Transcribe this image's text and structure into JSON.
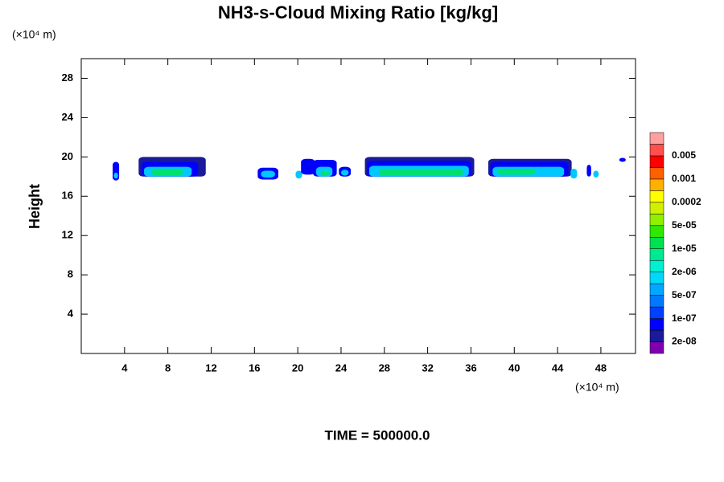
{
  "chart_data": {
    "type": "contour",
    "title": "NH3-s-Cloud Mixing Ratio [kg/kg]",
    "ylabel": "Height",
    "x_unit": "(×10⁴ m)",
    "y_unit": "(×10⁴ m)",
    "footer": "TIME = 500000.0",
    "xlim": [
      0,
      51.2
    ],
    "xticks": [
      4,
      8,
      12,
      16,
      20,
      24,
      28,
      32,
      36,
      40,
      44,
      48
    ],
    "ylim": [
      0,
      30
    ],
    "yticks": [
      4,
      8,
      12,
      16,
      20,
      24,
      28
    ],
    "colorbar": {
      "colors": [
        "#8000b0",
        "#1a1a9a",
        "#0000ff",
        "#0040ff",
        "#0078ff",
        "#00a8ff",
        "#00d8f8",
        "#00f0d0",
        "#00e890",
        "#00e050",
        "#30e800",
        "#90f000",
        "#d0f000",
        "#ffff00",
        "#ffb000",
        "#ff6000",
        "#ff0000",
        "#ff5050",
        "#ffa0a0"
      ],
      "ticks": [
        {
          "value": 2e-08,
          "label": "2e-08"
        },
        {
          "value": 1e-07,
          "label": "1e-07"
        },
        {
          "value": 5e-07,
          "label": "5e-07"
        },
        {
          "value": 2e-06,
          "label": "2e-06"
        },
        {
          "value": 1e-05,
          "label": "1e-05"
        },
        {
          "value": 5e-05,
          "label": "5e-05"
        },
        0.0002,
        0.001,
        0.005
      ]
    },
    "regions": [
      {
        "x": [
          2.9,
          3.5
        ],
        "y": [
          17.6,
          19.5
        ],
        "value": 1e-07,
        "color": "#0000ff"
      },
      {
        "x": [
          3.0,
          3.4
        ],
        "y": [
          17.8,
          18.4
        ],
        "value": 5e-07,
        "color": "#00c8ff"
      },
      {
        "x": [
          5.3,
          11.5
        ],
        "y": [
          18.0,
          20.0
        ],
        "value": 2e-08,
        "color": "#1a1a9a"
      },
      {
        "x": [
          5.6,
          10.8
        ],
        "y": [
          18.0,
          19.5
        ],
        "value": 1e-07,
        "color": "#0000ff"
      },
      {
        "x": [
          5.8,
          10.2
        ],
        "y": [
          18.0,
          19.0
        ],
        "value": 5e-07,
        "color": "#00c8ff"
      },
      {
        "x": [
          6.5,
          9.4
        ],
        "y": [
          18.1,
          18.8
        ],
        "value": 5e-06,
        "color": "#00e070"
      },
      {
        "x": [
          16.3,
          18.2
        ],
        "y": [
          17.7,
          18.9
        ],
        "value": 1e-07,
        "color": "#0000ff"
      },
      {
        "x": [
          16.6,
          17.9
        ],
        "y": [
          17.9,
          18.6
        ],
        "value": 5e-07,
        "color": "#00c8ff"
      },
      {
        "x": [
          19.8,
          20.4
        ],
        "y": [
          17.8,
          18.6
        ],
        "value": 5e-07,
        "color": "#00c8ff"
      },
      {
        "x": [
          20.3,
          21.6
        ],
        "y": [
          18.2,
          19.8
        ],
        "value": 1e-07,
        "color": "#0000ff"
      },
      {
        "x": [
          21.4,
          23.6
        ],
        "y": [
          18.0,
          19.7
        ],
        "value": 1e-07,
        "color": "#0000ff"
      },
      {
        "x": [
          21.7,
          23.2
        ],
        "y": [
          18.0,
          19.0
        ],
        "value": 5e-07,
        "color": "#00c8ff"
      },
      {
        "x": [
          22.1,
          22.9
        ],
        "y": [
          18.1,
          18.6
        ],
        "value": 5e-06,
        "color": "#00e070"
      },
      {
        "x": [
          23.8,
          24.9
        ],
        "y": [
          18.0,
          19.0
        ],
        "value": 1e-07,
        "color": "#0000ff"
      },
      {
        "x": [
          24.0,
          24.7
        ],
        "y": [
          18.1,
          18.7
        ],
        "value": 5e-07,
        "color": "#00c8ff"
      },
      {
        "x": [
          26.2,
          36.3
        ],
        "y": [
          18.0,
          20.0
        ],
        "value": 2e-08,
        "color": "#1a1a9a"
      },
      {
        "x": [
          26.4,
          36.0
        ],
        "y": [
          18.0,
          19.6
        ],
        "value": 1e-07,
        "color": "#0000ff"
      },
      {
        "x": [
          26.6,
          35.8
        ],
        "y": [
          18.0,
          19.1
        ],
        "value": 5e-07,
        "color": "#00c8ff"
      },
      {
        "x": [
          27.5,
          35.3
        ],
        "y": [
          18.1,
          18.8
        ],
        "value": 5e-06,
        "color": "#00e070"
      },
      {
        "x": [
          37.6,
          45.3
        ],
        "y": [
          18.0,
          19.8
        ],
        "value": 2e-08,
        "color": "#1a1a9a"
      },
      {
        "x": [
          37.8,
          45.0
        ],
        "y": [
          18.0,
          19.5
        ],
        "value": 1e-07,
        "color": "#0000ff"
      },
      {
        "x": [
          38.0,
          44.6
        ],
        "y": [
          18.0,
          19.0
        ],
        "value": 5e-07,
        "color": "#00c8ff"
      },
      {
        "x": [
          38.4,
          42.0
        ],
        "y": [
          18.2,
          18.8
        ],
        "value": 5e-06,
        "color": "#00e070"
      },
      {
        "x": [
          45.2,
          45.8
        ],
        "y": [
          17.8,
          18.8
        ],
        "value": 5e-07,
        "color": "#00c8ff"
      },
      {
        "x": [
          46.7,
          47.1
        ],
        "y": [
          18.0,
          19.2
        ],
        "value": 1e-07,
        "color": "#0000ff"
      },
      {
        "x": [
          47.3,
          47.8
        ],
        "y": [
          17.9,
          18.6
        ],
        "value": 5e-07,
        "color": "#00c8ff"
      },
      {
        "x": [
          49.7,
          50.3
        ],
        "y": [
          19.5,
          19.9
        ],
        "value": 1e-07,
        "color": "#0000ff"
      }
    ]
  }
}
